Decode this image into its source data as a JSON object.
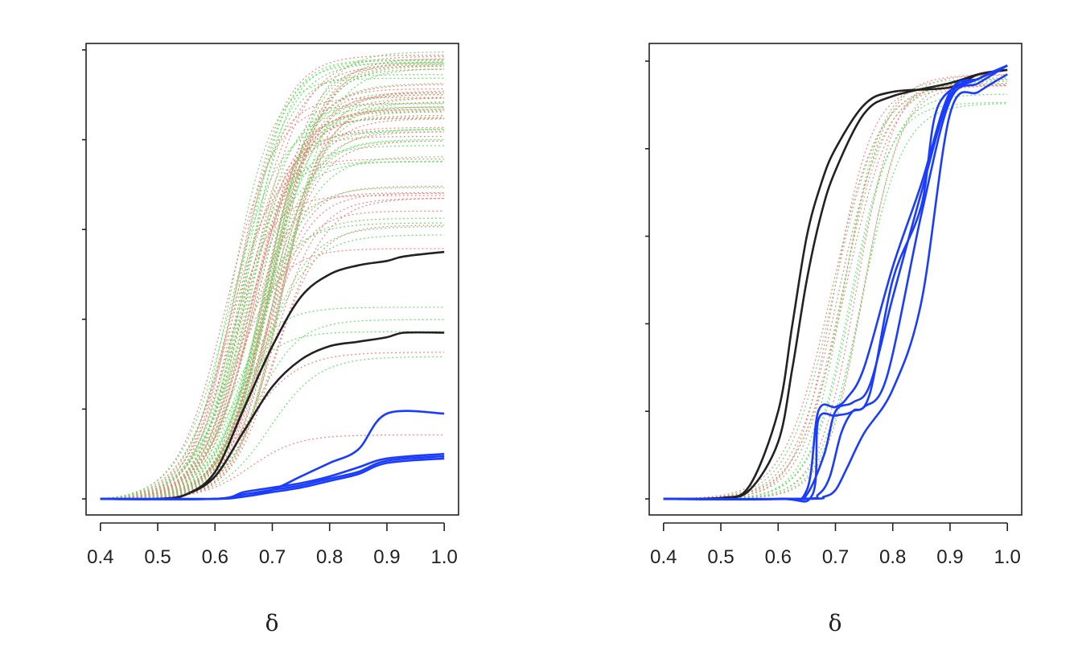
{
  "chart_data": [
    {
      "type": "line",
      "title": "",
      "xlabel": "δ",
      "ylabel": "",
      "xlim": [
        0.375,
        1.025
      ],
      "ylim": [
        0,
        1
      ],
      "xticks": [
        "0.4",
        "0.5",
        "0.6",
        "0.7",
        "0.8",
        "0.9",
        "1.0"
      ],
      "yticks": [
        0,
        0.2,
        0.4,
        0.6,
        0.8,
        1.0
      ],
      "ytick_labels_shown": false,
      "grid": false,
      "legend": "none",
      "background_curves": {
        "style": "dotted",
        "colors": [
          "#f08080",
          "#66dd66"
        ],
        "count": 80,
        "midpoint_range": [
          0.62,
          0.72
        ],
        "plateau_range": [
          0.13,
          1.0
        ]
      },
      "series": [
        {
          "color": "#222222",
          "style": "solid",
          "x": [
            0.4,
            0.5,
            0.55,
            0.6,
            0.65,
            0.7,
            0.75,
            0.8,
            0.85,
            0.9,
            0.93,
            1.0
          ],
          "y": [
            0,
            0,
            0.01,
            0.06,
            0.2,
            0.34,
            0.45,
            0.5,
            0.52,
            0.53,
            0.54,
            0.55
          ]
        },
        {
          "color": "#222222",
          "style": "solid",
          "x": [
            0.4,
            0.5,
            0.55,
            0.6,
            0.65,
            0.7,
            0.75,
            0.8,
            0.85,
            0.9,
            0.93,
            1.0
          ],
          "y": [
            0,
            0,
            0.01,
            0.05,
            0.15,
            0.25,
            0.31,
            0.34,
            0.35,
            0.36,
            0.37,
            0.37
          ]
        },
        {
          "color": "#1a3cff",
          "style": "solid",
          "x": [
            0.4,
            0.55,
            0.6,
            0.65,
            0.7,
            0.75,
            0.8,
            0.85,
            0.9,
            1.0
          ],
          "y": [
            0,
            0,
            0,
            0.005,
            0.02,
            0.05,
            0.08,
            0.11,
            0.19,
            0.19
          ]
        },
        {
          "color": "#1a3cff",
          "style": "solid",
          "x": [
            0.4,
            0.6,
            0.65,
            0.7,
            0.75,
            0.8,
            0.85,
            0.9,
            1.0
          ],
          "y": [
            0,
            0,
            0.01,
            0.02,
            0.03,
            0.045,
            0.06,
            0.085,
            0.095
          ]
        },
        {
          "color": "#1a3cff",
          "style": "solid",
          "x": [
            0.4,
            0.6,
            0.65,
            0.7,
            0.75,
            0.8,
            0.85,
            0.9,
            1.0
          ],
          "y": [
            0,
            0,
            0.005,
            0.015,
            0.025,
            0.04,
            0.055,
            0.08,
            0.09
          ]
        },
        {
          "color": "#1a3cff",
          "style": "solid",
          "x": [
            0.4,
            0.6,
            0.65,
            0.7,
            0.75,
            0.8,
            0.85,
            0.9,
            1.0
          ],
          "y": [
            0,
            0,
            0.015,
            0.025,
            0.035,
            0.05,
            0.07,
            0.09,
            0.1
          ]
        }
      ]
    },
    {
      "type": "line",
      "title": "",
      "xlabel": "δ",
      "ylabel": "",
      "xlim": [
        0.375,
        1.025
      ],
      "ylim": [
        0,
        1
      ],
      "xticks": [
        "0.4",
        "0.5",
        "0.6",
        "0.7",
        "0.8",
        "0.9",
        "1.0"
      ],
      "yticks": [
        0,
        0.2,
        0.4,
        0.6,
        0.8,
        1.0
      ],
      "ytick_labels_shown": false,
      "grid": false,
      "legend": "none",
      "background_curves": {
        "style": "dotted",
        "colors": [
          "#f08080",
          "#66dd66"
        ],
        "count": 14,
        "midpoint_range": [
          0.69,
          0.75
        ],
        "plateau_range": [
          0.9,
          0.97
        ]
      },
      "series": [
        {
          "color": "#222222",
          "style": "solid",
          "x": [
            0.4,
            0.5,
            0.55,
            0.6,
            0.625,
            0.65,
            0.675,
            0.7,
            0.75,
            0.8,
            0.9,
            0.95,
            1.0
          ],
          "y": [
            0,
            0.002,
            0.03,
            0.2,
            0.4,
            0.6,
            0.72,
            0.8,
            0.9,
            0.93,
            0.94,
            0.97,
            0.98
          ]
        },
        {
          "color": "#222222",
          "style": "solid",
          "x": [
            0.4,
            0.5,
            0.55,
            0.6,
            0.625,
            0.65,
            0.675,
            0.7,
            0.75,
            0.8,
            0.9,
            0.95,
            1.0
          ],
          "y": [
            0,
            0.002,
            0.02,
            0.13,
            0.3,
            0.5,
            0.65,
            0.75,
            0.88,
            0.92,
            0.95,
            0.97,
            0.98
          ]
        },
        {
          "color": "#1a3cff",
          "style": "solid",
          "x": [
            0.4,
            0.6,
            0.65,
            0.67,
            0.7,
            0.72,
            0.75,
            0.8,
            0.85,
            0.9,
            0.95,
            1.0
          ],
          "y": [
            0,
            0,
            0.02,
            0.2,
            0.21,
            0.23,
            0.3,
            0.53,
            0.72,
            0.93,
            0.96,
            0.99
          ]
        },
        {
          "color": "#1a3cff",
          "style": "solid",
          "x": [
            0.4,
            0.62,
            0.65,
            0.68,
            0.7,
            0.73,
            0.76,
            0.8,
            0.85,
            0.9,
            0.95,
            1.0
          ],
          "y": [
            0,
            0,
            0.01,
            0.1,
            0.2,
            0.22,
            0.26,
            0.46,
            0.7,
            0.92,
            0.96,
            0.99
          ]
        },
        {
          "color": "#1a3cff",
          "style": "solid",
          "x": [
            0.4,
            0.64,
            0.67,
            0.69,
            0.71,
            0.73,
            0.75,
            0.79,
            0.85,
            0.9,
            0.95,
            1.0
          ],
          "y": [
            0,
            0,
            0.01,
            0.05,
            0.15,
            0.2,
            0.21,
            0.28,
            0.65,
            0.91,
            0.95,
            0.99
          ]
        },
        {
          "color": "#1a3cff",
          "style": "solid",
          "x": [
            0.4,
            0.6,
            0.66,
            0.67,
            0.7,
            0.73,
            0.76,
            0.8,
            0.85,
            0.88,
            0.95,
            1.0
          ],
          "y": [
            0,
            0,
            0.01,
            0.18,
            0.19,
            0.2,
            0.24,
            0.5,
            0.67,
            0.9,
            0.96,
            0.99
          ]
        },
        {
          "color": "#1a3cff",
          "style": "solid",
          "x": [
            0.4,
            0.65,
            0.68,
            0.7,
            0.72,
            0.75,
            0.8,
            0.85,
            0.9,
            0.95,
            1.0
          ],
          "y": [
            0,
            0,
            0.005,
            0.02,
            0.07,
            0.15,
            0.25,
            0.45,
            0.88,
            0.93,
            0.97
          ]
        }
      ]
    }
  ]
}
